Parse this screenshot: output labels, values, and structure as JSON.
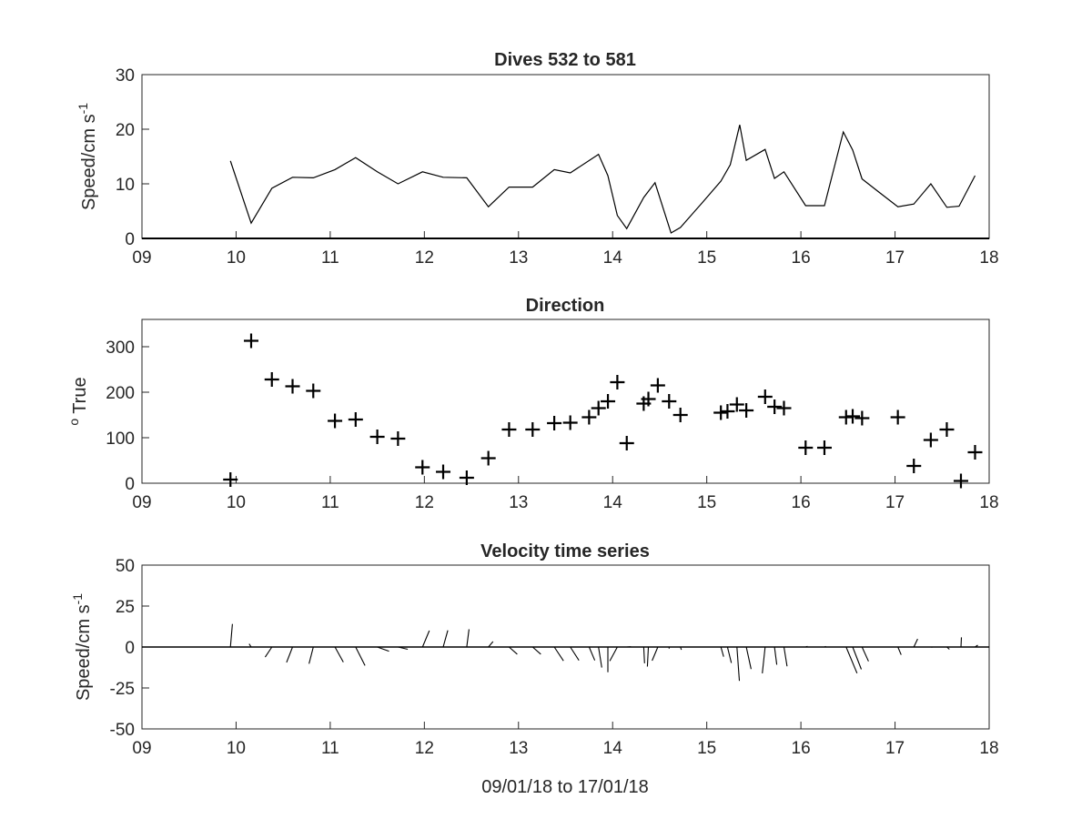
{
  "chart_data": [
    {
      "type": "line",
      "title": "Dives 532 to 581",
      "xlabel": "",
      "ylabel": "Speed/cm s",
      "ylabel_sup": "-1",
      "xlim": [
        9,
        18
      ],
      "ylim": [
        0,
        30
      ],
      "xticks": [
        9,
        10,
        11,
        12,
        13,
        14,
        15,
        16,
        17,
        18
      ],
      "xticklabels": [
        "09",
        "10",
        "11",
        "12",
        "13",
        "14",
        "15",
        "16",
        "17",
        "18"
      ],
      "yticks": [
        0,
        10,
        20,
        30
      ],
      "yticklabels": [
        "0",
        "10",
        "20",
        "30"
      ],
      "grid": false,
      "series": [
        {
          "color": "#000000",
          "x": [
            9.94,
            10.16,
            10.38,
            10.6,
            10.82,
            11.05,
            11.27,
            11.5,
            11.72,
            11.98,
            12.2,
            12.45,
            12.68,
            12.9,
            13.15,
            13.38,
            13.55,
            13.85,
            13.95,
            14.05,
            14.15,
            14.33,
            14.45,
            14.62,
            14.72,
            14.95,
            15.15,
            15.25,
            15.35,
            15.42,
            15.62,
            15.72,
            15.82,
            16.05,
            16.25,
            16.45,
            16.55,
            16.65,
            16.82,
            17.03,
            17.2,
            17.38,
            17.55,
            17.68,
            17.85
          ],
          "y": [
            14.2,
            2.8,
            9.2,
            11.2,
            11.1,
            12.6,
            14.8,
            12.2,
            10.0,
            12.2,
            11.2,
            11.1,
            5.8,
            9.4,
            9.4,
            12.6,
            12.0,
            15.4,
            11.5,
            4.2,
            1.8,
            7.5,
            10.2,
            1.0,
            2.0,
            6.5,
            10.5,
            13.5,
            20.8,
            14.3,
            16.3,
            11.0,
            12.2,
            6.0,
            6.0,
            19.5,
            16.2,
            10.9,
            8.6,
            5.8,
            6.3,
            10.0,
            5.7,
            5.9,
            11.5
          ]
        }
      ]
    },
    {
      "type": "scatter",
      "title": "Direction",
      "xlabel": "",
      "ylabel": "True",
      "ylabel_sup": "o",
      "xlim": [
        9,
        18
      ],
      "ylim": [
        0,
        360
      ],
      "xticks": [
        9,
        10,
        11,
        12,
        13,
        14,
        15,
        16,
        17,
        18
      ],
      "xticklabels": [
        "09",
        "10",
        "11",
        "12",
        "13",
        "14",
        "15",
        "16",
        "17",
        "18"
      ],
      "yticks": [
        0,
        100,
        200,
        300
      ],
      "yticklabels": [
        "0",
        "100",
        "200",
        "300"
      ],
      "grid": false,
      "marker": "+",
      "series": [
        {
          "color": "#000000",
          "x": [
            9.94,
            10.16,
            10.38,
            10.6,
            10.82,
            11.05,
            11.27,
            11.5,
            11.72,
            11.98,
            12.2,
            12.45,
            12.68,
            12.9,
            13.15,
            13.38,
            13.55,
            13.75,
            13.85,
            13.95,
            14.05,
            14.15,
            14.33,
            14.38,
            14.48,
            14.6,
            14.72,
            15.15,
            15.22,
            15.32,
            15.42,
            15.62,
            15.72,
            15.82,
            16.05,
            16.25,
            16.48,
            16.55,
            16.65,
            17.03,
            17.2,
            17.38,
            17.55,
            17.7,
            17.85
          ],
          "y": [
            8,
            313,
            228,
            213,
            203,
            137,
            140,
            102,
            98,
            35,
            25,
            12,
            55,
            118,
            118,
            132,
            133,
            145,
            165,
            180,
            222,
            88,
            175,
            185,
            215,
            180,
            150,
            155,
            158,
            173,
            160,
            190,
            168,
            165,
            78,
            78,
            145,
            147,
            143,
            145,
            38,
            95,
            118,
            5,
            68
          ]
        }
      ]
    },
    {
      "type": "line",
      "subtype": "stick plot",
      "title": "Velocity time series",
      "xlabel": "09/01/18 to 17/01/18",
      "ylabel": "Speed/cm s",
      "ylabel_sup": "-1",
      "xlim": [
        9,
        18
      ],
      "ylim": [
        -50,
        50
      ],
      "xticks": [
        9,
        10,
        11,
        12,
        13,
        14,
        15,
        16,
        17,
        18
      ],
      "xticklabels": [
        "09",
        "10",
        "11",
        "12",
        "13",
        "14",
        "15",
        "16",
        "17",
        "18"
      ],
      "yticks": [
        -50,
        -25,
        0,
        25,
        50
      ],
      "yticklabels": [
        "-50",
        "-25",
        "0",
        "25",
        "50"
      ],
      "grid": false,
      "series": [
        {
          "color": "#000000",
          "x": [
            9.94,
            10.16,
            10.38,
            10.6,
            10.82,
            11.05,
            11.27,
            11.5,
            11.72,
            11.98,
            12.2,
            12.45,
            12.68,
            12.9,
            13.15,
            13.38,
            13.55,
            13.75,
            13.85,
            13.95,
            14.05,
            14.15,
            14.33,
            14.38,
            14.48,
            14.6,
            14.72,
            15.15,
            15.22,
            15.32,
            15.42,
            15.62,
            15.72,
            15.82,
            16.05,
            16.25,
            16.48,
            16.55,
            16.65,
            17.03,
            17.2,
            17.38,
            17.55,
            17.7,
            17.85
          ],
          "speed": [
            14.2,
            2.8,
            9.2,
            11.2,
            11.1,
            12.6,
            14.8,
            12.2,
            10.0,
            12.2,
            11.2,
            11.1,
            5.8,
            9.4,
            9.4,
            12.6,
            12.0,
            10.0,
            13.0,
            15.4,
            11.5,
            4.2,
            10.0,
            12.0,
            10.2,
            1.0,
            2.0,
            6.5,
            10.5,
            20.8,
            14.3,
            16.3,
            11.0,
            12.2,
            2.0,
            1.5,
            19.5,
            16.2,
            10.9,
            5.8,
            6.3,
            1.5,
            3.0,
            5.9,
            3.0
          ],
          "direction_deg": [
            8,
            313,
            228,
            213,
            203,
            137,
            140,
            102,
            98,
            35,
            25,
            12,
            55,
            118,
            118,
            132,
            133,
            145,
            165,
            180,
            222,
            88,
            175,
            185,
            215,
            180,
            150,
            155,
            158,
            173,
            160,
            190,
            168,
            165,
            78,
            78,
            145,
            147,
            143,
            145,
            38,
            95,
            118,
            5,
            68
          ]
        }
      ]
    }
  ]
}
